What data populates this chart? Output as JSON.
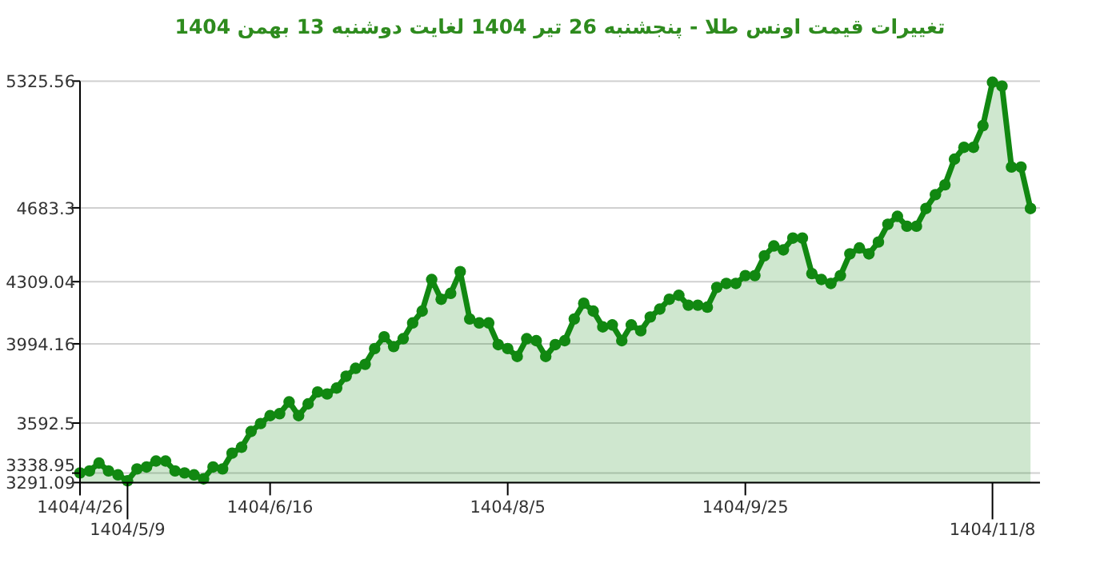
{
  "chart_data": {
    "type": "area",
    "title": "تغییرات قیمت اونس طلا - پنجشنبه  26 تیر 1404 لغایت  دوشنبه  13 بهمن 1404",
    "categories": [
      "1404/4/26",
      null,
      null,
      null,
      null,
      "1404/5/9",
      null,
      null,
      null,
      null,
      null,
      null,
      null,
      null,
      null,
      null,
      null,
      null,
      null,
      null,
      "1404/6/16",
      null,
      null,
      null,
      null,
      null,
      null,
      null,
      null,
      null,
      null,
      null,
      null,
      null,
      null,
      null,
      null,
      null,
      null,
      null,
      null,
      null,
      null,
      null,
      null,
      "1404/8/5",
      null,
      null,
      null,
      null,
      null,
      null,
      null,
      null,
      null,
      null,
      null,
      null,
      null,
      null,
      null,
      null,
      null,
      null,
      null,
      null,
      null,
      null,
      null,
      null,
      "1404/9/25",
      null,
      null,
      null,
      null,
      null,
      null,
      null,
      null,
      null,
      null,
      null,
      null,
      null,
      null,
      null,
      null,
      null,
      null,
      null,
      null,
      null,
      null,
      null,
      null,
      null,
      "1404/11/8",
      null,
      null,
      null,
      null
    ],
    "ylim": [
      3291.09,
      5325.56
    ],
    "yticks": [
      3291.09,
      3338.95,
      3592.5,
      3994.16,
      4309.04,
      4683.3,
      5325.56
    ],
    "grid": "y",
    "marker": "circle",
    "line_style": "solid",
    "series": [
      {
        "color": "#118811",
        "values": [
          3340,
          3350,
          3390,
          3350,
          3330,
          3300,
          3360,
          3370,
          3400,
          3400,
          3350,
          3340,
          3330,
          3310,
          3370,
          3360,
          3440,
          3470,
          3550,
          3590,
          3630,
          3640,
          3700,
          3630,
          3690,
          3750,
          3740,
          3770,
          3830,
          3870,
          3890,
          3970,
          4030,
          3980,
          4020,
          4100,
          4160,
          4320,
          4220,
          4250,
          4360,
          4120,
          4100,
          4100,
          3990,
          3970,
          3930,
          4020,
          4010,
          3930,
          3990,
          4010,
          4120,
          4200,
          4160,
          4080,
          4090,
          4010,
          4090,
          4060,
          4130,
          4170,
          4220,
          4240,
          4190,
          4190,
          4180,
          4280,
          4300,
          4300,
          4340,
          4340,
          4440,
          4490,
          4470,
          4530,
          4530,
          4350,
          4320,
          4300,
          4340,
          4450,
          4480,
          4450,
          4510,
          4600,
          4640,
          4590,
          4590,
          4680,
          4750,
          4800,
          4930,
          4990,
          4990,
          5100,
          5320,
          5300,
          4890,
          4890,
          4680
        ]
      }
    ]
  }
}
